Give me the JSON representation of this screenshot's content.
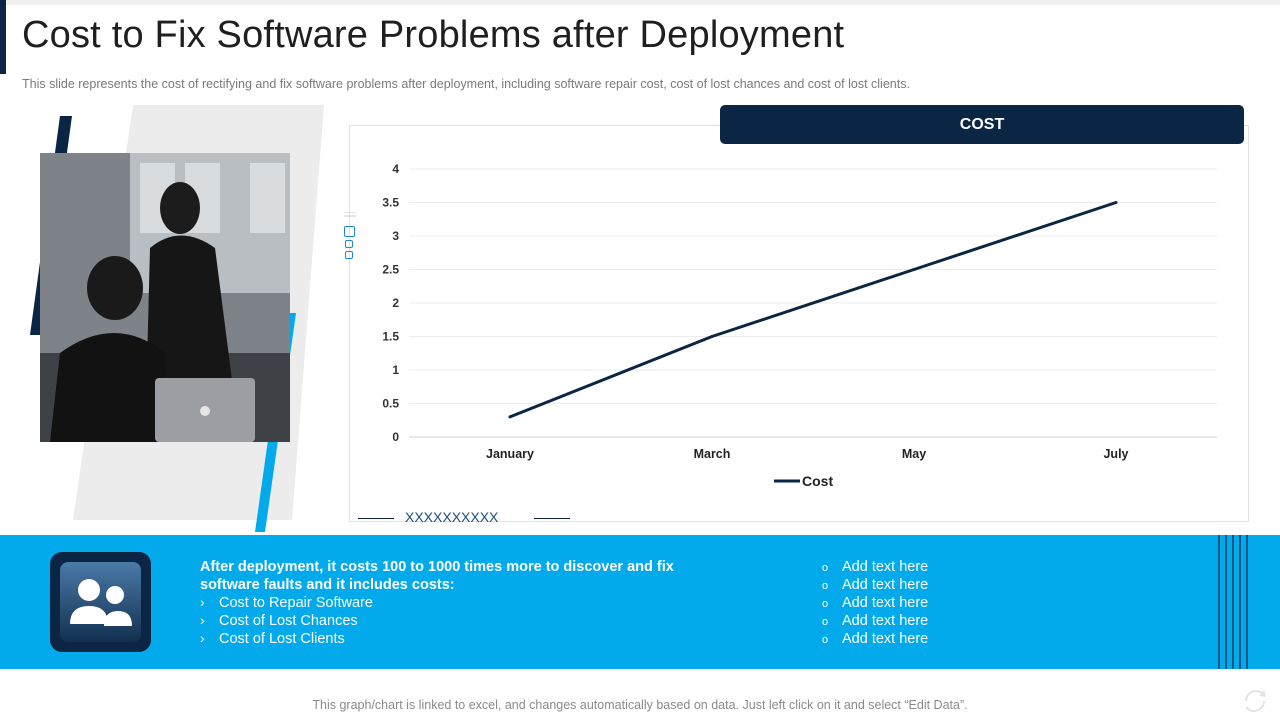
{
  "header": {
    "title": "Cost to Fix Software Problems after Deployment",
    "subtitle": "This slide represents the cost of rectifying and fix software problems after deployment, including software repair cost, cost of lost chances and cost of lost clients."
  },
  "chart_header": "COST",
  "chart_data": {
    "type": "line",
    "title": "COST",
    "categories": [
      "January",
      "March",
      "May",
      "July"
    ],
    "series": [
      {
        "name": "Cost",
        "values": [
          0.3,
          1.5,
          2.5,
          3.5
        ],
        "color": "#0b2545"
      }
    ],
    "yticks": [
      "0",
      "0.5",
      "1",
      "1.5",
      "2",
      "2.5",
      "3",
      "3.5",
      "4"
    ],
    "ylim": [
      0,
      4
    ],
    "xlabel": "",
    "ylabel": "",
    "grid": true,
    "legend": "bottom-center"
  },
  "deco_text": "XXXXXXXXXX",
  "band": {
    "heading": "After deployment, it costs 100 to 1000 times more to discover and fix software faults and it includes costs:",
    "bullets": [
      "Cost to Repair Software",
      "Cost of Lost Chances",
      "Cost of Lost Clients"
    ],
    "bullet_glyph": "›",
    "add_items": [
      "Add text here",
      "Add text here",
      "Add text here",
      "Add text here",
      "Add text here"
    ],
    "add_glyph": "o"
  },
  "footer_note": "This graph/chart is linked to excel, and changes automatically based on data. Just left click on it and select “Edit Data”.",
  "colors": {
    "navy": "#0b2545",
    "accent_blue": "#02aaeb",
    "light_gray": "#ececec"
  }
}
